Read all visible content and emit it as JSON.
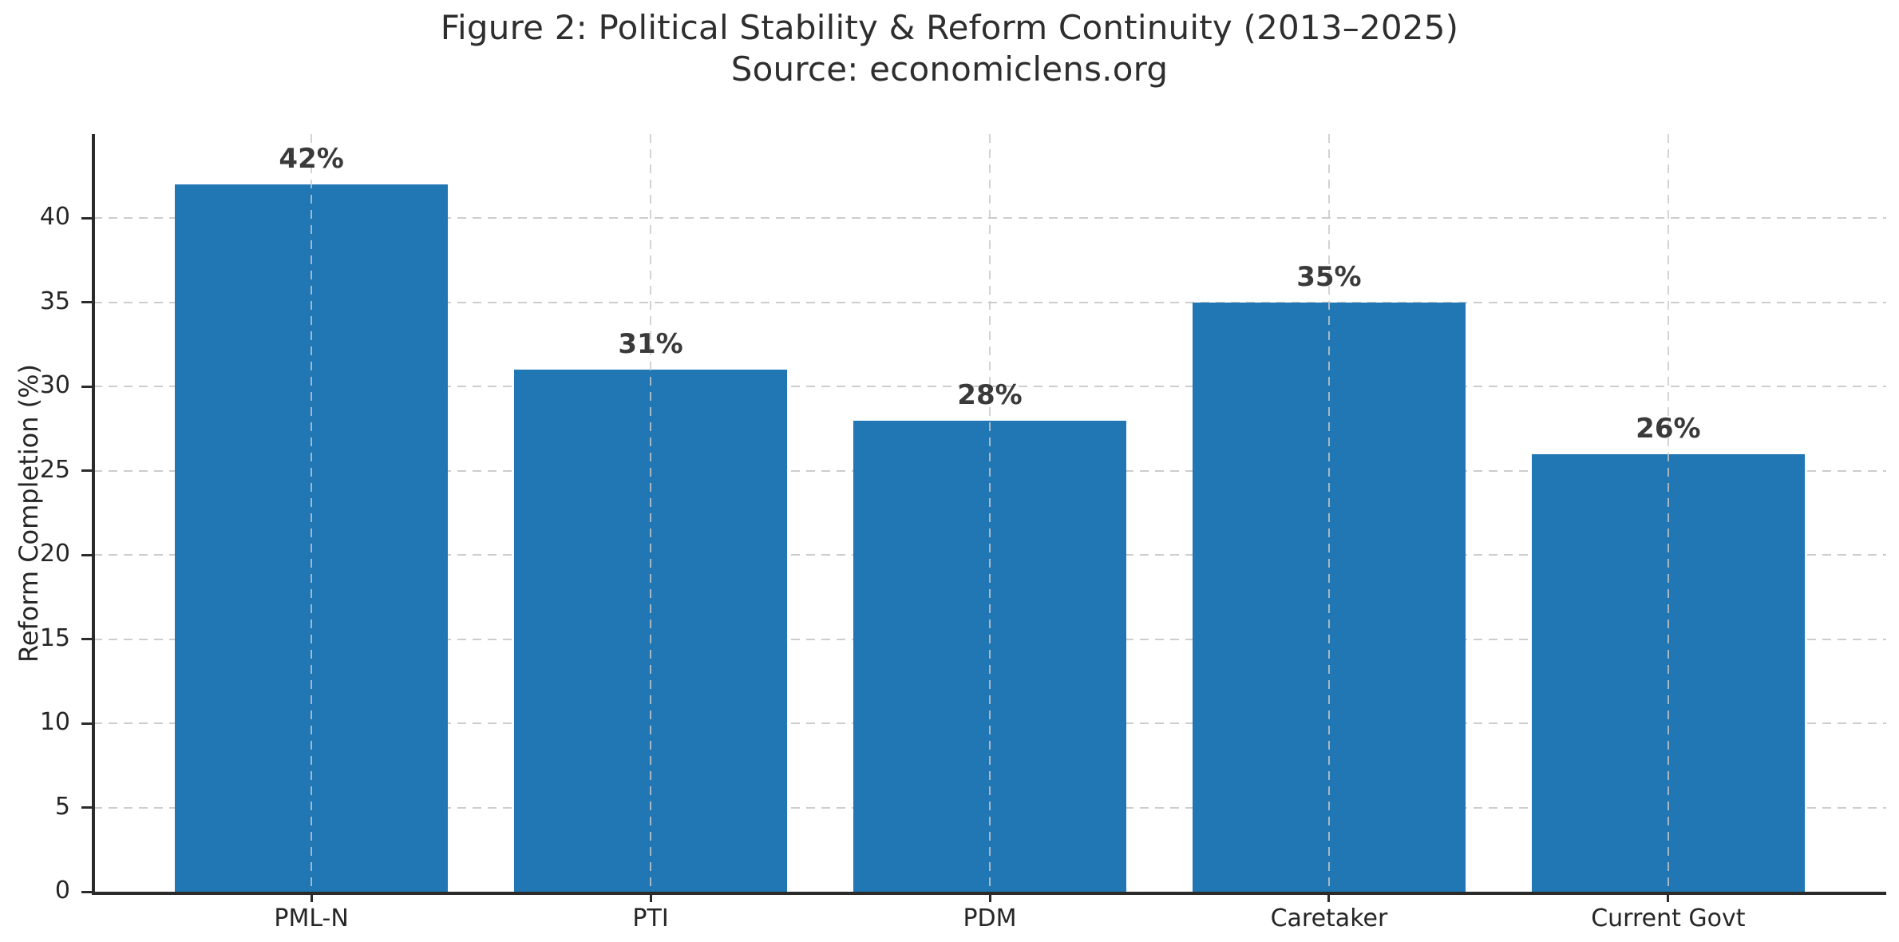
{
  "figure": {
    "title": "Figure 2: Political Stability & Reform Continuity (2013–2025)",
    "subtitle": "Source: economiclens.org"
  },
  "chart_data": {
    "type": "bar",
    "title": "Figure 2: Political Stability & Reform Continuity (2013–2025)",
    "subtitle": "Source: economiclens.org",
    "categories": [
      "PML-N",
      "PTI",
      "PDM",
      "Caretaker",
      "Current Govt"
    ],
    "values": [
      42,
      31,
      28,
      35,
      26
    ],
    "value_labels": [
      "42%",
      "31%",
      "28%",
      "35%",
      "26%"
    ],
    "xlabel": "",
    "ylabel": "Reform Completion (%)",
    "ylim": [
      0,
      45
    ],
    "yticks": [
      0,
      5,
      10,
      15,
      20,
      25,
      30,
      35,
      40
    ],
    "grid": "dashed gridlines on both axes, horizontal behind bars, vertical faintly over bars",
    "legend_position": "none",
    "colors": {
      "bar": "#2177b4",
      "grid": "#cdcdcd",
      "spine": "#2b2b2b",
      "tick_text": "#262626",
      "title_text": "#2e2e2e",
      "value_label_text": "#3a3a3a",
      "background": "#ffffff"
    },
    "layout": {
      "side_padding_frac": 0.027,
      "bar_width_frac_of_slot": 0.805
    }
  }
}
